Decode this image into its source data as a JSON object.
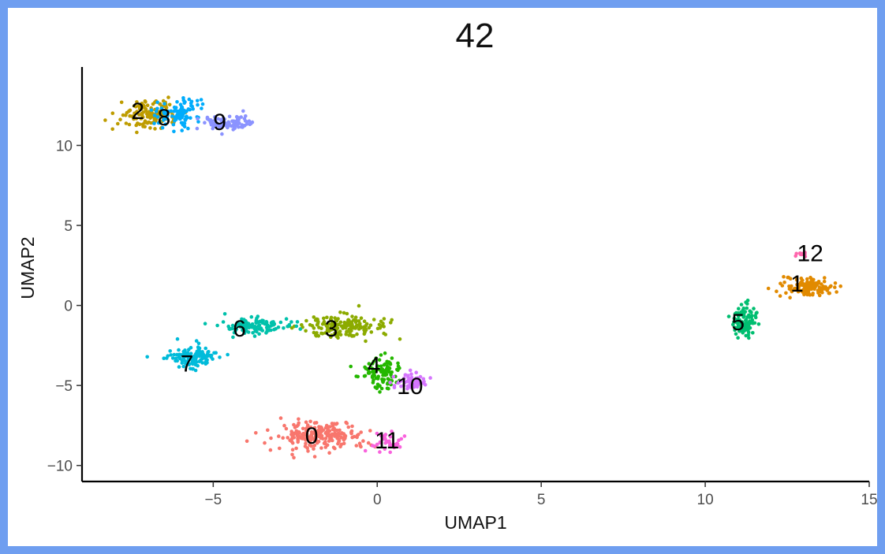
{
  "chart_data": {
    "type": "scatter",
    "title": "42",
    "xlabel": "UMAP1",
    "ylabel": "UMAP2",
    "xlim": [
      -9,
      15
    ],
    "ylim": [
      -11,
      14.9
    ],
    "x_ticks": [
      -5,
      0,
      5,
      10,
      15
    ],
    "x_tick_labels": [
      "−5",
      "0",
      "5",
      "10",
      "15"
    ],
    "y_ticks": [
      -10,
      -5,
      0,
      5,
      10
    ],
    "y_tick_labels": [
      "−10",
      "−5",
      "0",
      "5",
      "10"
    ],
    "grid": false,
    "legend": "none",
    "clusters": [
      {
        "id": "0",
        "color": "#F8766D",
        "center": [
          -1.8,
          -8.2
        ],
        "spread": [
          1.3,
          0.8
        ],
        "n": 220,
        "label_pos": [
          -2.0,
          -8.1
        ]
      },
      {
        "id": "1",
        "color": "#E18A00",
        "center": [
          13.1,
          1.2
        ],
        "spread": [
          0.7,
          0.5
        ],
        "n": 130,
        "label_pos": [
          12.8,
          1.4
        ]
      },
      {
        "id": "2",
        "color": "#BE9C00",
        "center": [
          -7.0,
          12.0
        ],
        "spread": [
          0.8,
          0.8
        ],
        "n": 140,
        "label_pos": [
          -7.3,
          12.2
        ]
      },
      {
        "id": "3",
        "color": "#8CAB00",
        "center": [
          -1.0,
          -1.3
        ],
        "spread": [
          1.2,
          0.7
        ],
        "n": 160,
        "label_pos": [
          -1.4,
          -1.4
        ]
      },
      {
        "id": "4",
        "color": "#24B700",
        "center": [
          0.1,
          -4.2
        ],
        "spread": [
          0.5,
          0.9
        ],
        "n": 110,
        "label_pos": [
          -0.1,
          -3.7
        ]
      },
      {
        "id": "5",
        "color": "#00BE70",
        "center": [
          11.2,
          -1.0
        ],
        "spread": [
          0.4,
          0.9
        ],
        "n": 100,
        "label_pos": [
          11.0,
          -1.0
        ]
      },
      {
        "id": "6",
        "color": "#00C1AB",
        "center": [
          -3.8,
          -1.3
        ],
        "spread": [
          1.0,
          0.5
        ],
        "n": 110,
        "label_pos": [
          -4.2,
          -1.4
        ]
      },
      {
        "id": "7",
        "color": "#00BBDA",
        "center": [
          -5.6,
          -3.2
        ],
        "spread": [
          0.7,
          0.6
        ],
        "n": 120,
        "label_pos": [
          -5.8,
          -3.6
        ]
      },
      {
        "id": "8",
        "color": "#00ACFC",
        "center": [
          -6.0,
          12.0
        ],
        "spread": [
          0.6,
          0.8
        ],
        "n": 100,
        "label_pos": [
          -6.5,
          11.8
        ]
      },
      {
        "id": "9",
        "color": "#8B93FF",
        "center": [
          -4.6,
          11.4
        ],
        "spread": [
          0.7,
          0.4
        ],
        "n": 90,
        "label_pos": [
          -4.8,
          11.5
        ]
      },
      {
        "id": "10",
        "color": "#D575FE",
        "center": [
          1.0,
          -4.8
        ],
        "spread": [
          0.5,
          0.5
        ],
        "n": 60,
        "label_pos": [
          1.0,
          -5.0
        ]
      },
      {
        "id": "11",
        "color": "#F962DD",
        "center": [
          0.3,
          -8.7
        ],
        "spread": [
          0.4,
          0.6
        ],
        "n": 40,
        "label_pos": [
          0.3,
          -8.4
        ]
      },
      {
        "id": "12",
        "color": "#FF65AC",
        "center": [
          13.0,
          3.2
        ],
        "spread": [
          0.2,
          0.15
        ],
        "n": 14,
        "label_pos": [
          13.2,
          3.3
        ]
      }
    ]
  },
  "colors": {
    "frame": "#6f9ef0",
    "axis": "#000000",
    "tick_text": "#4d4d4d"
  }
}
